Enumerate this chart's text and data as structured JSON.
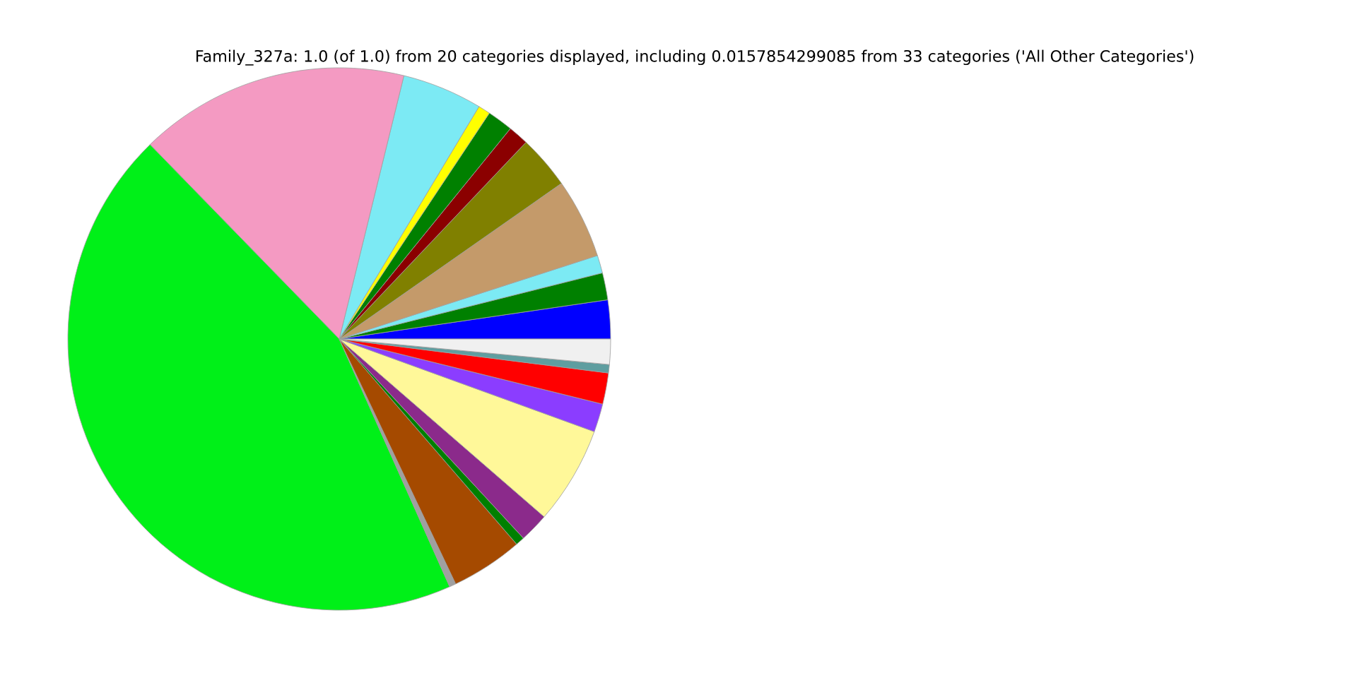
{
  "chart_data": {
    "type": "pie",
    "title": "Family_327a: 1.0 (of 1.0) from 20 categories displayed, including 0.0157854299085 from 33 categories ('All Other Categories')",
    "categories": [
      null,
      null,
      null,
      null,
      null,
      null,
      null,
      null,
      null,
      null,
      null,
      null,
      null,
      null,
      null,
      null,
      null,
      null,
      null,
      null
    ],
    "values": [
      2.31,
      1.61,
      1.06,
      4.75,
      3.19,
      1.22,
      1.53,
      0.72,
      4.78,
      16.11,
      44.39,
      0.39,
      4.28,
      0.53,
      1.75,
      5.83,
      1.69,
      1.86,
      0.5,
      1.5
    ],
    "colors": [
      "#0000ff",
      "#008000",
      "#7ceaf4",
      "#c49a6a",
      "#808000",
      "#8b0000",
      "#008000",
      "#ffff00",
      "#7ceaf4",
      "#f49ac2",
      "#00f018",
      "#a0a0a0",
      "#a54a00",
      "#008000",
      "#8b2a8b",
      "#fff899",
      "#8b3dff",
      "#ff0000",
      "#5f9ea0",
      "#f0f0f0"
    ],
    "legend": false
  }
}
